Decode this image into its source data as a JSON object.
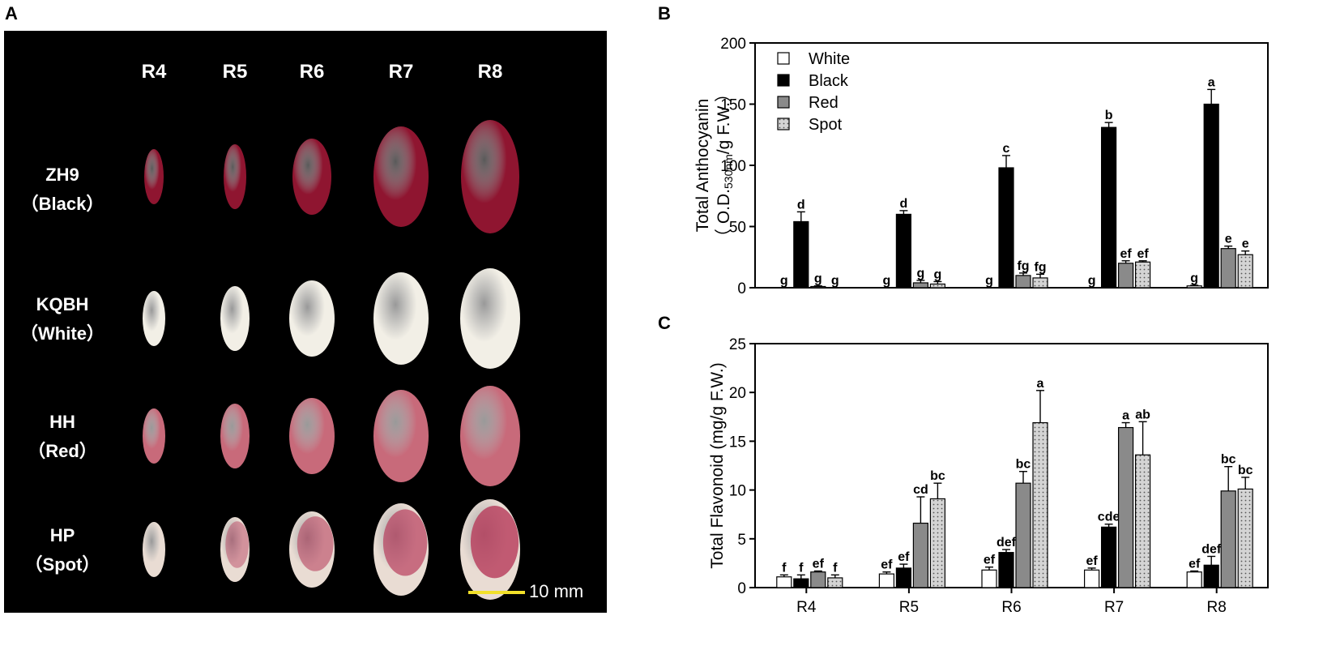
{
  "figure": {
    "panels": {
      "a": "A",
      "b": "B",
      "c": "C"
    },
    "photo": {
      "stages": [
        "R4",
        "R5",
        "R6",
        "R7",
        "R8"
      ],
      "rows": [
        {
          "name": "ZH9",
          "type": "（Black）",
          "seed_color": "#8f1530"
        },
        {
          "name": "KQBH",
          "type": "（White）",
          "seed_color": "#f2efe6"
        },
        {
          "name": "HH",
          "type": "（Red）",
          "seed_color": "#c86a7a"
        },
        {
          "name": "HP",
          "type": "（Spot）",
          "seed_color": "#e9dcd3"
        }
      ],
      "scale_bar_label": "10 mm",
      "scale_bar_color": "#f2e02a"
    }
  },
  "chart_data": [
    {
      "id": "B",
      "type": "bar",
      "title": "",
      "xlabel": "",
      "ylabel_line1": "Total Anthocyanin",
      "ylabel_line2_pre": "（ O.D.",
      "ylabel_line2_sub": "530nm",
      "ylabel_line2_post": "/g F.W.）",
      "ylim": [
        0,
        200
      ],
      "yticks": [
        "0",
        "50",
        "100",
        "150",
        "200"
      ],
      "categories": [
        "R4",
        "R5",
        "R6",
        "R7",
        "R8"
      ],
      "show_category_labels": false,
      "legend": [
        "White",
        "Black",
        "Red",
        "Spot"
      ],
      "legend_position": "top-left",
      "series": [
        {
          "name": "White",
          "values": [
            0,
            0,
            0,
            0,
            1.5
          ],
          "errors": [
            0,
            0,
            0,
            0,
            0.5
          ],
          "letters": [
            "g",
            "g",
            "g",
            "g",
            "g"
          ]
        },
        {
          "name": "Black",
          "values": [
            54,
            60,
            98,
            131,
            150
          ],
          "errors": [
            8,
            3,
            10,
            4,
            12
          ],
          "letters": [
            "d",
            "d",
            "c",
            "b",
            "a"
          ]
        },
        {
          "name": "Red",
          "values": [
            1,
            4,
            10,
            20,
            32
          ],
          "errors": [
            0.5,
            2,
            2,
            2,
            2
          ],
          "letters": [
            "g",
            "g",
            "fg",
            "ef",
            "e"
          ]
        },
        {
          "name": "Spot",
          "values": [
            0,
            3,
            8,
            21,
            27
          ],
          "errors": [
            0,
            2,
            3,
            1,
            3
          ],
          "letters": [
            "g",
            "g",
            "fg",
            "ef",
            "e"
          ]
        }
      ]
    },
    {
      "id": "C",
      "type": "bar",
      "title": "",
      "xlabel": "",
      "ylabel_line1": "Total Flavonoid (mg/g F.W.)",
      "ylim": [
        0,
        25
      ],
      "yticks": [
        "0",
        "5",
        "10",
        "15",
        "20",
        "25"
      ],
      "categories": [
        "R4",
        "R5",
        "R6",
        "R7",
        "R8"
      ],
      "show_category_labels": true,
      "legend": [],
      "series": [
        {
          "name": "White",
          "values": [
            1.1,
            1.4,
            1.8,
            1.8,
            1.6
          ],
          "errors": [
            0.2,
            0.2,
            0.3,
            0.2,
            0.1
          ],
          "letters": [
            "f",
            "ef",
            "ef",
            "ef",
            "ef"
          ]
        },
        {
          "name": "Black",
          "values": [
            0.9,
            2.0,
            3.6,
            6.2,
            2.3
          ],
          "errors": [
            0.4,
            0.4,
            0.3,
            0.3,
            0.9
          ],
          "letters": [
            "f",
            "ef",
            "def",
            "cde",
            "def"
          ]
        },
        {
          "name": "Red",
          "values": [
            1.6,
            6.6,
            10.7,
            16.4,
            9.9
          ],
          "errors": [
            0.1,
            2.7,
            1.2,
            0.5,
            2.5
          ],
          "letters": [
            "ef",
            "cd",
            "bc",
            "a",
            "bc"
          ]
        },
        {
          "name": "Spot",
          "values": [
            1.0,
            9.1,
            16.9,
            13.6,
            10.1
          ],
          "errors": [
            0.3,
            1.6,
            3.3,
            3.4,
            1.2
          ],
          "letters": [
            "f",
            "bc",
            "a",
            "ab",
            "bc"
          ]
        }
      ]
    }
  ]
}
